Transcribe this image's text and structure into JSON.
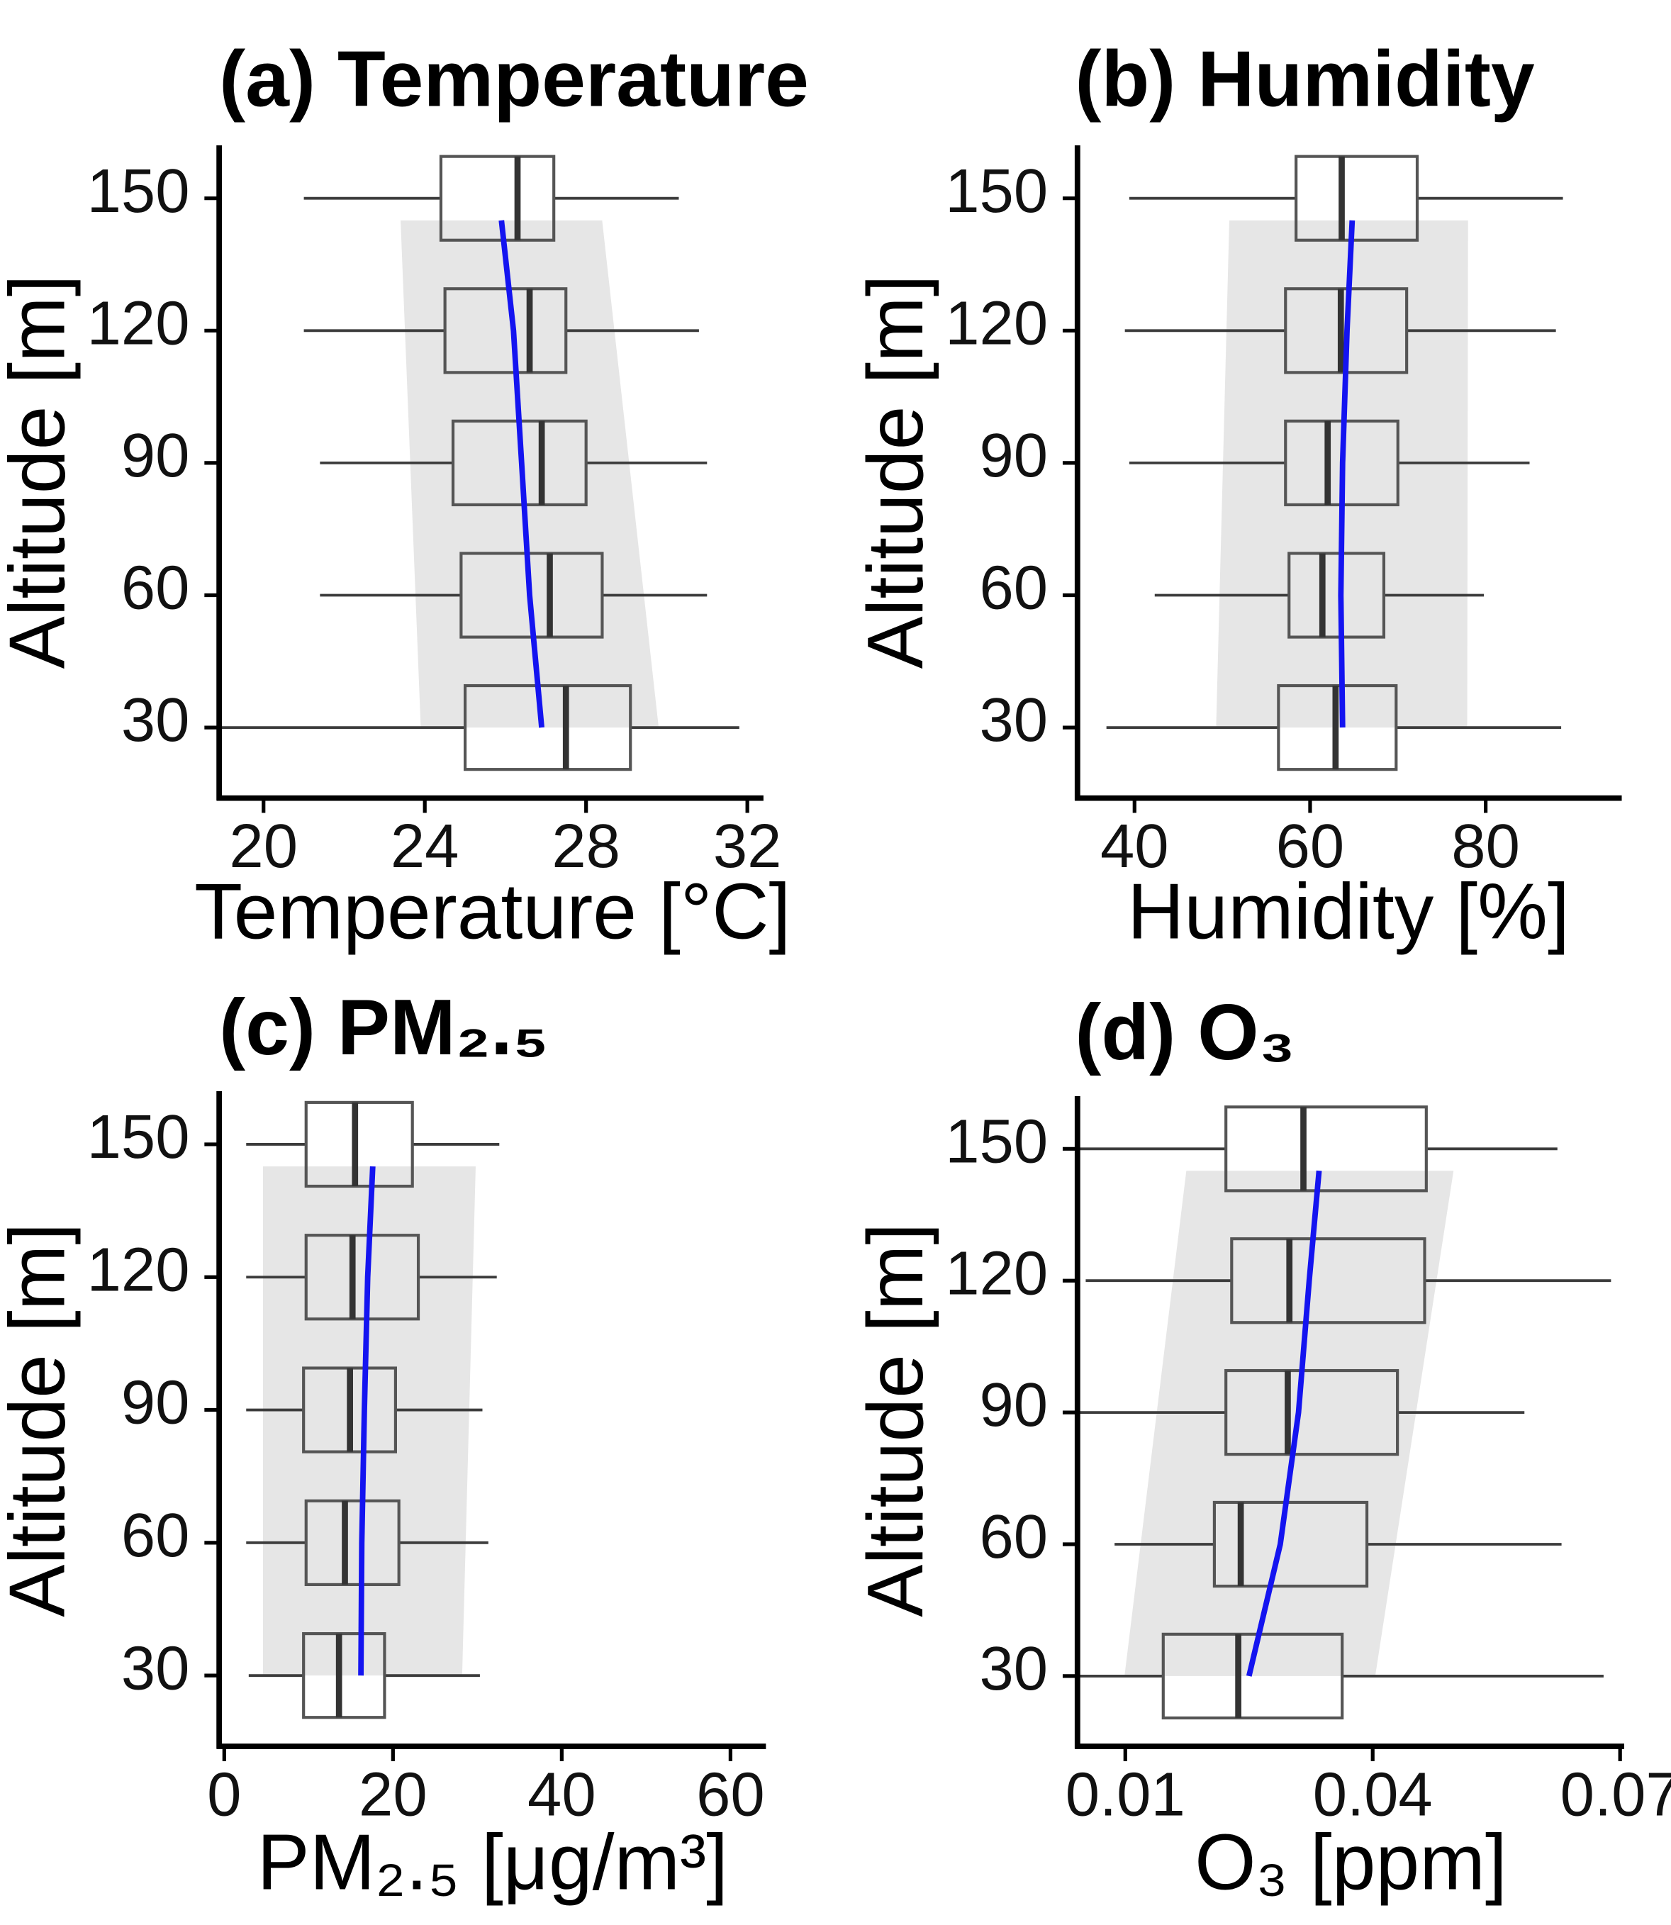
{
  "figure": {
    "colors": {
      "fit_line": "#1414f0",
      "band": "#e6e6e6",
      "box_stroke": "#555555",
      "median": "#333333",
      "axis": "#000000"
    }
  },
  "chart_data": [
    {
      "type": "box",
      "title": "(a) Temperature",
      "xlabel": "Temperature [°C]",
      "ylabel": "Altitude [m]",
      "xlim": [
        18.9,
        32.4
      ],
      "ylim": [
        14,
        162
      ],
      "x_ticks": [
        20,
        24,
        28,
        32
      ],
      "x_tick_labels": [
        "20",
        "24",
        "28",
        "32"
      ],
      "y_ticks": [
        30,
        60,
        90,
        120,
        150
      ],
      "y_tick_labels": [
        "30",
        "60",
        "90",
        "120",
        "150"
      ],
      "boxes": [
        {
          "altitude": 30,
          "whisker_low": 17.1,
          "q1": 25.0,
          "median": 27.5,
          "q3": 29.1,
          "whisker_high": 31.8
        },
        {
          "altitude": 60,
          "whisker_low": 21.4,
          "q1": 24.9,
          "median": 27.1,
          "q3": 28.4,
          "whisker_high": 31.0
        },
        {
          "altitude": 90,
          "whisker_low": 21.4,
          "q1": 24.7,
          "median": 26.9,
          "q3": 28.0,
          "whisker_high": 31.0
        },
        {
          "altitude": 120,
          "whisker_low": 21.0,
          "q1": 24.5,
          "median": 26.6,
          "q3": 27.5,
          "whisker_high": 30.8
        },
        {
          "altitude": 150,
          "whisker_low": 21.0,
          "q1": 24.4,
          "median": 26.3,
          "q3": 27.2,
          "whisker_high": 30.3
        }
      ],
      "band": {
        "altitudes": [
          30,
          145
        ],
        "low": [
          23.9,
          23.4
        ],
        "high": [
          29.8,
          28.4
        ]
      },
      "fit_line": {
        "altitudes": [
          30,
          60,
          90,
          120,
          145
        ],
        "values": [
          26.9,
          26.6,
          26.4,
          26.2,
          25.9
        ]
      }
    },
    {
      "type": "box",
      "title": "(b) Humidity",
      "xlabel": "Humidity [%]",
      "ylabel": "Altitude [m]",
      "xlim": [
        33.5,
        95.5
      ],
      "ylim": [
        14,
        162
      ],
      "x_ticks": [
        40,
        60,
        80
      ],
      "x_tick_labels": [
        "40",
        "60",
        "80"
      ],
      "y_ticks": [
        30,
        60,
        90,
        120,
        150
      ],
      "y_tick_labels": [
        "30",
        "60",
        "90",
        "120",
        "150"
      ],
      "boxes": [
        {
          "altitude": 30,
          "whisker_low": 36.8,
          "q1": 56.4,
          "median": 62.9,
          "q3": 69.8,
          "whisker_high": 88.6
        },
        {
          "altitude": 60,
          "whisker_low": 42.3,
          "q1": 57.6,
          "median": 61.4,
          "q3": 68.4,
          "whisker_high": 79.8
        },
        {
          "altitude": 90,
          "whisker_low": 39.4,
          "q1": 57.2,
          "median": 62.0,
          "q3": 70.0,
          "whisker_high": 85.0
        },
        {
          "altitude": 120,
          "whisker_low": 38.9,
          "q1": 57.2,
          "median": 63.5,
          "q3": 71.0,
          "whisker_high": 88.0
        },
        {
          "altitude": 150,
          "whisker_low": 39.4,
          "q1": 58.4,
          "median": 63.6,
          "q3": 72.2,
          "whisker_high": 88.8
        }
      ],
      "band": {
        "altitudes": [
          30,
          145
        ],
        "low": [
          49.3,
          50.8
        ],
        "high": [
          77.9,
          78.0
        ]
      },
      "fit_line": {
        "altitudes": [
          30,
          60,
          90,
          120,
          145
        ],
        "values": [
          63.7,
          63.5,
          63.7,
          64.2,
          64.8
        ]
      }
    },
    {
      "type": "box",
      "title": "(c) PM₂.₅",
      "xlabel": "PM₂.₅ [μg/m³]",
      "ylabel": "Altitude [m]",
      "xlim": [
        -0.6,
        64.2
      ],
      "ylim": [
        14,
        162
      ],
      "x_ticks": [
        0,
        20,
        40,
        60
      ],
      "x_tick_labels": [
        "0",
        "20",
        "40",
        "60"
      ],
      "y_ticks": [
        30,
        60,
        90,
        120,
        150
      ],
      "y_tick_labels": [
        "30",
        "60",
        "90",
        "120",
        "150"
      ],
      "boxes": [
        {
          "altitude": 30,
          "whisker_low": 2.9,
          "q1": 9.4,
          "median": 13.6,
          "q3": 19.0,
          "whisker_high": 30.3
        },
        {
          "altitude": 60,
          "whisker_low": 2.6,
          "q1": 9.7,
          "median": 14.3,
          "q3": 20.7,
          "whisker_high": 31.3
        },
        {
          "altitude": 90,
          "whisker_low": 2.6,
          "q1": 9.4,
          "median": 14.9,
          "q3": 20.3,
          "whisker_high": 30.6
        },
        {
          "altitude": 120,
          "whisker_low": 2.6,
          "q1": 9.7,
          "median": 15.2,
          "q3": 23.0,
          "whisker_high": 32.3
        },
        {
          "altitude": 150,
          "whisker_low": 2.6,
          "q1": 9.7,
          "median": 15.5,
          "q3": 22.3,
          "whisker_high": 32.6
        }
      ],
      "band": {
        "altitudes": [
          30,
          145
        ],
        "low": [
          4.6,
          4.6
        ],
        "high": [
          28.2,
          29.8
        ]
      },
      "fit_line": {
        "altitudes": [
          30,
          60,
          90,
          120,
          145
        ],
        "values": [
          16.2,
          16.3,
          16.6,
          17.0,
          17.6
        ]
      }
    },
    {
      "type": "box",
      "title": "(d) O₃",
      "xlabel": "O₃ [ppm]",
      "ylabel": "Altitude [m]",
      "xlim": [
        0.0042,
        0.0705
      ],
      "ylim": [
        14,
        162
      ],
      "x_ticks": [
        0.01,
        0.04,
        0.07
      ],
      "x_tick_labels": [
        "0.01",
        "0.04",
        "0.07"
      ],
      "y_ticks": [
        30,
        60,
        90,
        120,
        150
      ],
      "y_tick_labels": [
        "30",
        "60",
        "90",
        "120",
        "150"
      ],
      "boxes": [
        {
          "altitude": 30,
          "whisker_low": 0.0034,
          "q1": 0.0146,
          "median": 0.0237,
          "q3": 0.0363,
          "whisker_high": 0.068
        },
        {
          "altitude": 60,
          "whisker_low": 0.0087,
          "q1": 0.0208,
          "median": 0.024,
          "q3": 0.0393,
          "whisker_high": 0.0629
        },
        {
          "altitude": 90,
          "whisker_low": 0.0042,
          "q1": 0.0222,
          "median": 0.0297,
          "q3": 0.043,
          "whisker_high": 0.0584
        },
        {
          "altitude": 120,
          "whisker_low": 0.0052,
          "q1": 0.0229,
          "median": 0.0299,
          "q3": 0.0463,
          "whisker_high": 0.0689
        },
        {
          "altitude": 150,
          "whisker_low": 0.0042,
          "q1": 0.0222,
          "median": 0.0316,
          "q3": 0.0465,
          "whisker_high": 0.0624
        }
      ],
      "band": {
        "altitudes": [
          30,
          145
        ],
        "low": [
          0.0099,
          0.0174
        ],
        "high": [
          0.0403,
          0.0498
        ]
      },
      "fit_line": {
        "altitudes": [
          30,
          60,
          90,
          120,
          145
        ],
        "values": [
          0.025,
          0.0288,
          0.031,
          0.0323,
          0.0335
        ]
      }
    }
  ]
}
